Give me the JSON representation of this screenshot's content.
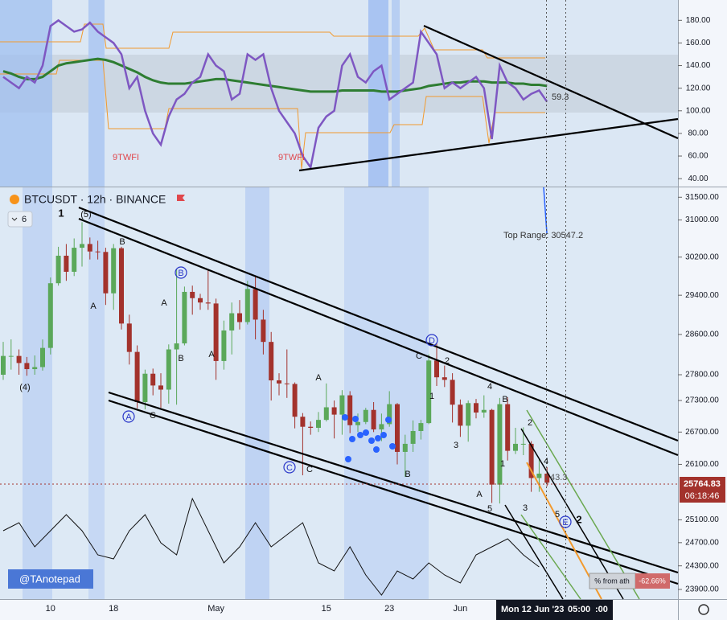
{
  "chart_data": [
    {
      "type": "line",
      "ylim": [
        33,
        198
      ],
      "yticks": [
        {
          "value": 40,
          "label": "40.00"
        },
        {
          "value": 60,
          "label": "60.00"
        },
        {
          "value": 80,
          "label": "80.00"
        },
        {
          "value": 100,
          "label": "100.00"
        },
        {
          "value": 120,
          "label": "120.00"
        },
        {
          "value": 140,
          "label": "140.00"
        },
        {
          "value": 160,
          "label": "160.00"
        },
        {
          "value": 180,
          "label": "180.00"
        }
      ],
      "series": [
        {
          "color": "#7e57c2",
          "values": [
            130,
            125,
            120,
            130,
            125,
            140,
            175,
            180,
            175,
            170,
            172,
            178,
            170,
            165,
            160,
            150,
            120,
            130,
            100,
            80,
            70,
            95,
            110,
            115,
            125,
            130,
            150,
            140,
            135,
            110,
            115,
            150,
            145,
            150,
            120,
            100,
            90,
            80,
            60,
            50,
            85,
            95,
            100,
            140,
            150,
            130,
            125,
            135,
            140,
            110,
            115,
            120,
            125,
            170,
            160,
            150,
            120,
            125,
            120,
            125,
            130,
            120,
            75,
            140,
            125,
            120,
            110,
            115,
            118,
            108
          ]
        },
        {
          "color": "#2e7d32",
          "values": [
            135,
            133,
            130,
            128,
            128,
            130,
            135,
            140,
            142,
            143,
            144,
            145,
            146,
            145,
            143,
            140,
            137,
            134,
            130,
            127,
            125,
            124,
            124,
            124,
            125,
            126,
            127,
            128,
            128,
            127,
            126,
            125,
            124,
            123,
            122,
            121,
            120,
            119,
            118,
            117,
            117,
            117,
            117,
            118,
            118,
            118,
            118,
            118,
            117,
            117,
            117,
            118,
            119,
            120,
            122,
            123,
            124,
            125,
            125,
            126,
            126,
            126,
            125,
            125,
            125,
            124,
            124,
            123,
            123,
            122
          ]
        }
      ],
      "value_tag": "59.3",
      "annotations": [
        "9TWFI",
        "9TWFI"
      ]
    },
    {
      "type": "candlestick",
      "title": "BTCUSDT · 12h · BINANCE",
      "interval_badge": "6",
      "log_scale": true,
      "categories": [
        null,
        null,
        null,
        null,
        null,
        null,
        "10",
        null,
        null,
        null,
        null,
        null,
        null,
        null,
        "18",
        null,
        null,
        null,
        null,
        null,
        null,
        null,
        null,
        null,
        null,
        null,
        null,
        "May",
        null,
        null,
        null,
        null,
        null,
        null,
        null,
        null,
        null,
        null,
        null,
        null,
        null,
        "15",
        null,
        null,
        null,
        null,
        null,
        null,
        null,
        "23",
        null,
        null,
        null,
        null,
        null,
        null,
        null,
        null,
        "Jun",
        null,
        null,
        null,
        null,
        null,
        null,
        null,
        null,
        null,
        null,
        null
      ],
      "open": [
        27800,
        28170,
        28170,
        28030,
        27910,
        27950,
        28330,
        29650,
        30230,
        29890,
        30400,
        30480,
        30320,
        30310,
        29440,
        30390,
        28820,
        28250,
        27270,
        27820,
        27590,
        27510,
        28300,
        28420,
        29470,
        29340,
        29250,
        29230,
        28070,
        28680,
        29030,
        28850,
        29530,
        28900,
        28450,
        27690,
        27630,
        27620,
        26990,
        26800,
        26780,
        26930,
        27170,
        27030,
        27400,
        26830,
        26890,
        27120,
        26750,
        26850,
        27230,
        26330,
        26480,
        26720,
        26870,
        28080,
        27750,
        27700,
        27220,
        26820,
        27250,
        27070,
        27120,
        25730,
        27230,
        26350,
        26480,
        26480,
        25850,
        25930
      ],
      "high": [
        28450,
        28500,
        28300,
        28150,
        28180,
        28500,
        29770,
        30420,
        30480,
        30600,
        30950,
        30620,
        30550,
        30400,
        30480,
        30420,
        29000,
        28380,
        27900,
        27920,
        27830,
        28400,
        29950,
        29580,
        29600,
        29430,
        29950,
        29330,
        28880,
        29250,
        29300,
        29700,
        29800,
        29100,
        28650,
        27830,
        28300,
        27650,
        27060,
        26900,
        27080,
        27630,
        27300,
        27500,
        27480,
        27050,
        27160,
        27270,
        27050,
        27480,
        27250,
        26650,
        26920,
        26930,
        28200,
        28430,
        27980,
        27830,
        27320,
        27300,
        27330,
        27400,
        27140,
        27350,
        27360,
        26780,
        26790,
        26530,
        26200,
        26050
      ],
      "low": [
        27700,
        27900,
        27800,
        27780,
        27800,
        27880,
        28200,
        29600,
        29700,
        29800,
        30000,
        30150,
        30150,
        29200,
        29100,
        28700,
        28000,
        27150,
        27130,
        27400,
        27160,
        27240,
        27220,
        28380,
        29000,
        29100,
        29100,
        27700,
        27900,
        28200,
        28700,
        28800,
        28500,
        28200,
        27300,
        27400,
        27350,
        26770,
        25900,
        26650,
        26700,
        26900,
        26580,
        26650,
        26680,
        26700,
        26850,
        26700,
        26530,
        26800,
        26100,
        25870,
        26330,
        26560,
        26850,
        27580,
        27560,
        26880,
        26610,
        26520,
        26960,
        26970,
        25400,
        25390,
        26170,
        26290,
        26270,
        25600,
        25600,
        25700
      ],
      "close": [
        28170,
        28170,
        28030,
        27910,
        27950,
        28330,
        29650,
        30230,
        29890,
        30400,
        30480,
        30320,
        30310,
        29440,
        30390,
        28820,
        28250,
        27270,
        27820,
        27590,
        27510,
        28300,
        28420,
        29470,
        29340,
        29250,
        29230,
        28070,
        28680,
        29030,
        28850,
        29530,
        28900,
        28450,
        27690,
        27630,
        27620,
        26990,
        26800,
        26780,
        26930,
        27170,
        27030,
        27400,
        26830,
        26890,
        27120,
        26750,
        26850,
        27230,
        26330,
        26480,
        26720,
        26870,
        28080,
        27750,
        27700,
        27220,
        26820,
        27250,
        27070,
        27120,
        25730,
        27230,
        26350,
        26480,
        26480,
        25850,
        25930,
        25764.83
      ],
      "up_color": "#5ba85a",
      "down_color": "#a3322c",
      "ylim": [
        23738,
        31720
      ],
      "yticks": [
        {
          "value": 23900,
          "label": "23900.00"
        },
        {
          "value": 24300,
          "label": "24300.00"
        },
        {
          "value": 24700,
          "label": "24700.00"
        },
        {
          "value": 25100,
          "label": "25100.00"
        },
        {
          "value": 26100,
          "label": "26100.00"
        },
        {
          "value": 26700,
          "label": "26700.00"
        },
        {
          "value": 27300,
          "label": "27300.00"
        },
        {
          "value": 27800,
          "label": "27800.00"
        },
        {
          "value": 28600,
          "label": "28600.00"
        },
        {
          "value": 29400,
          "label": "29400.00"
        },
        {
          "value": 30200,
          "label": "30200.00"
        },
        {
          "value": 31000,
          "label": "31000.00"
        },
        {
          "value": 31500,
          "label": "31500.00"
        }
      ],
      "countdown": "06:18:46",
      "top_range": "Top Range: 30547.2",
      "level_tag": "43.3",
      "ath_label": "% from ath",
      "ath_value": "-62.66%",
      "watermark": "@TAnotepad",
      "crosshair_date": "Mon 12 Jun '23",
      "crosshair_time": "05:00",
      "crosshair_seconds": ":00",
      "annotations": [
        "1",
        "(5)",
        "B",
        "A",
        "(4)",
        "B",
        "A",
        "B",
        "A",
        "A",
        "C",
        "C",
        "C",
        "A",
        "B",
        "D",
        "C",
        "2",
        "1",
        "3",
        "4",
        "B",
        "A",
        "5",
        "1",
        "2",
        "3",
        "4",
        "5",
        "E",
        "2"
      ]
    },
    {
      "type": "line",
      "color": "#111111",
      "values": [
        85,
        95,
        65,
        85,
        105,
        85,
        55,
        50,
        85,
        105,
        70,
        55,
        125,
        85,
        45,
        65,
        95,
        65,
        80,
        95,
        45,
        35,
        65,
        30,
        5,
        35,
        25,
        45,
        30,
        20,
        55,
        65,
        75,
        55,
        40
      ]
    }
  ]
}
